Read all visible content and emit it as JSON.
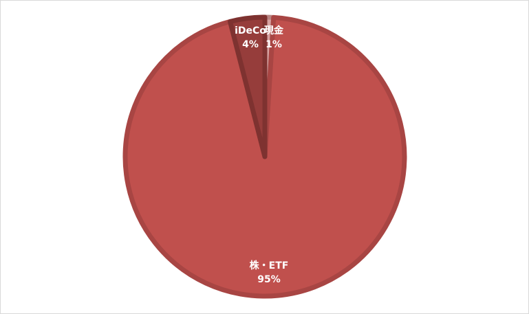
{
  "chart_data": {
    "type": "pie",
    "start": "12 o'clock, clockwise",
    "slices": [
      {
        "label": "現金",
        "value": 1,
        "value_label": "1%",
        "color": "#d7a3a2",
        "edge": "#b88482"
      },
      {
        "label": "株・ETF",
        "value": 95,
        "value_label": "95%",
        "color": "#c0504d",
        "edge": "#a84543"
      },
      {
        "label": "iDeCo",
        "value": 4,
        "value_label": "4%",
        "color": "#963d3b",
        "edge": "#7e3230"
      }
    ],
    "legend": "none",
    "data_labels": "category and percentage"
  }
}
